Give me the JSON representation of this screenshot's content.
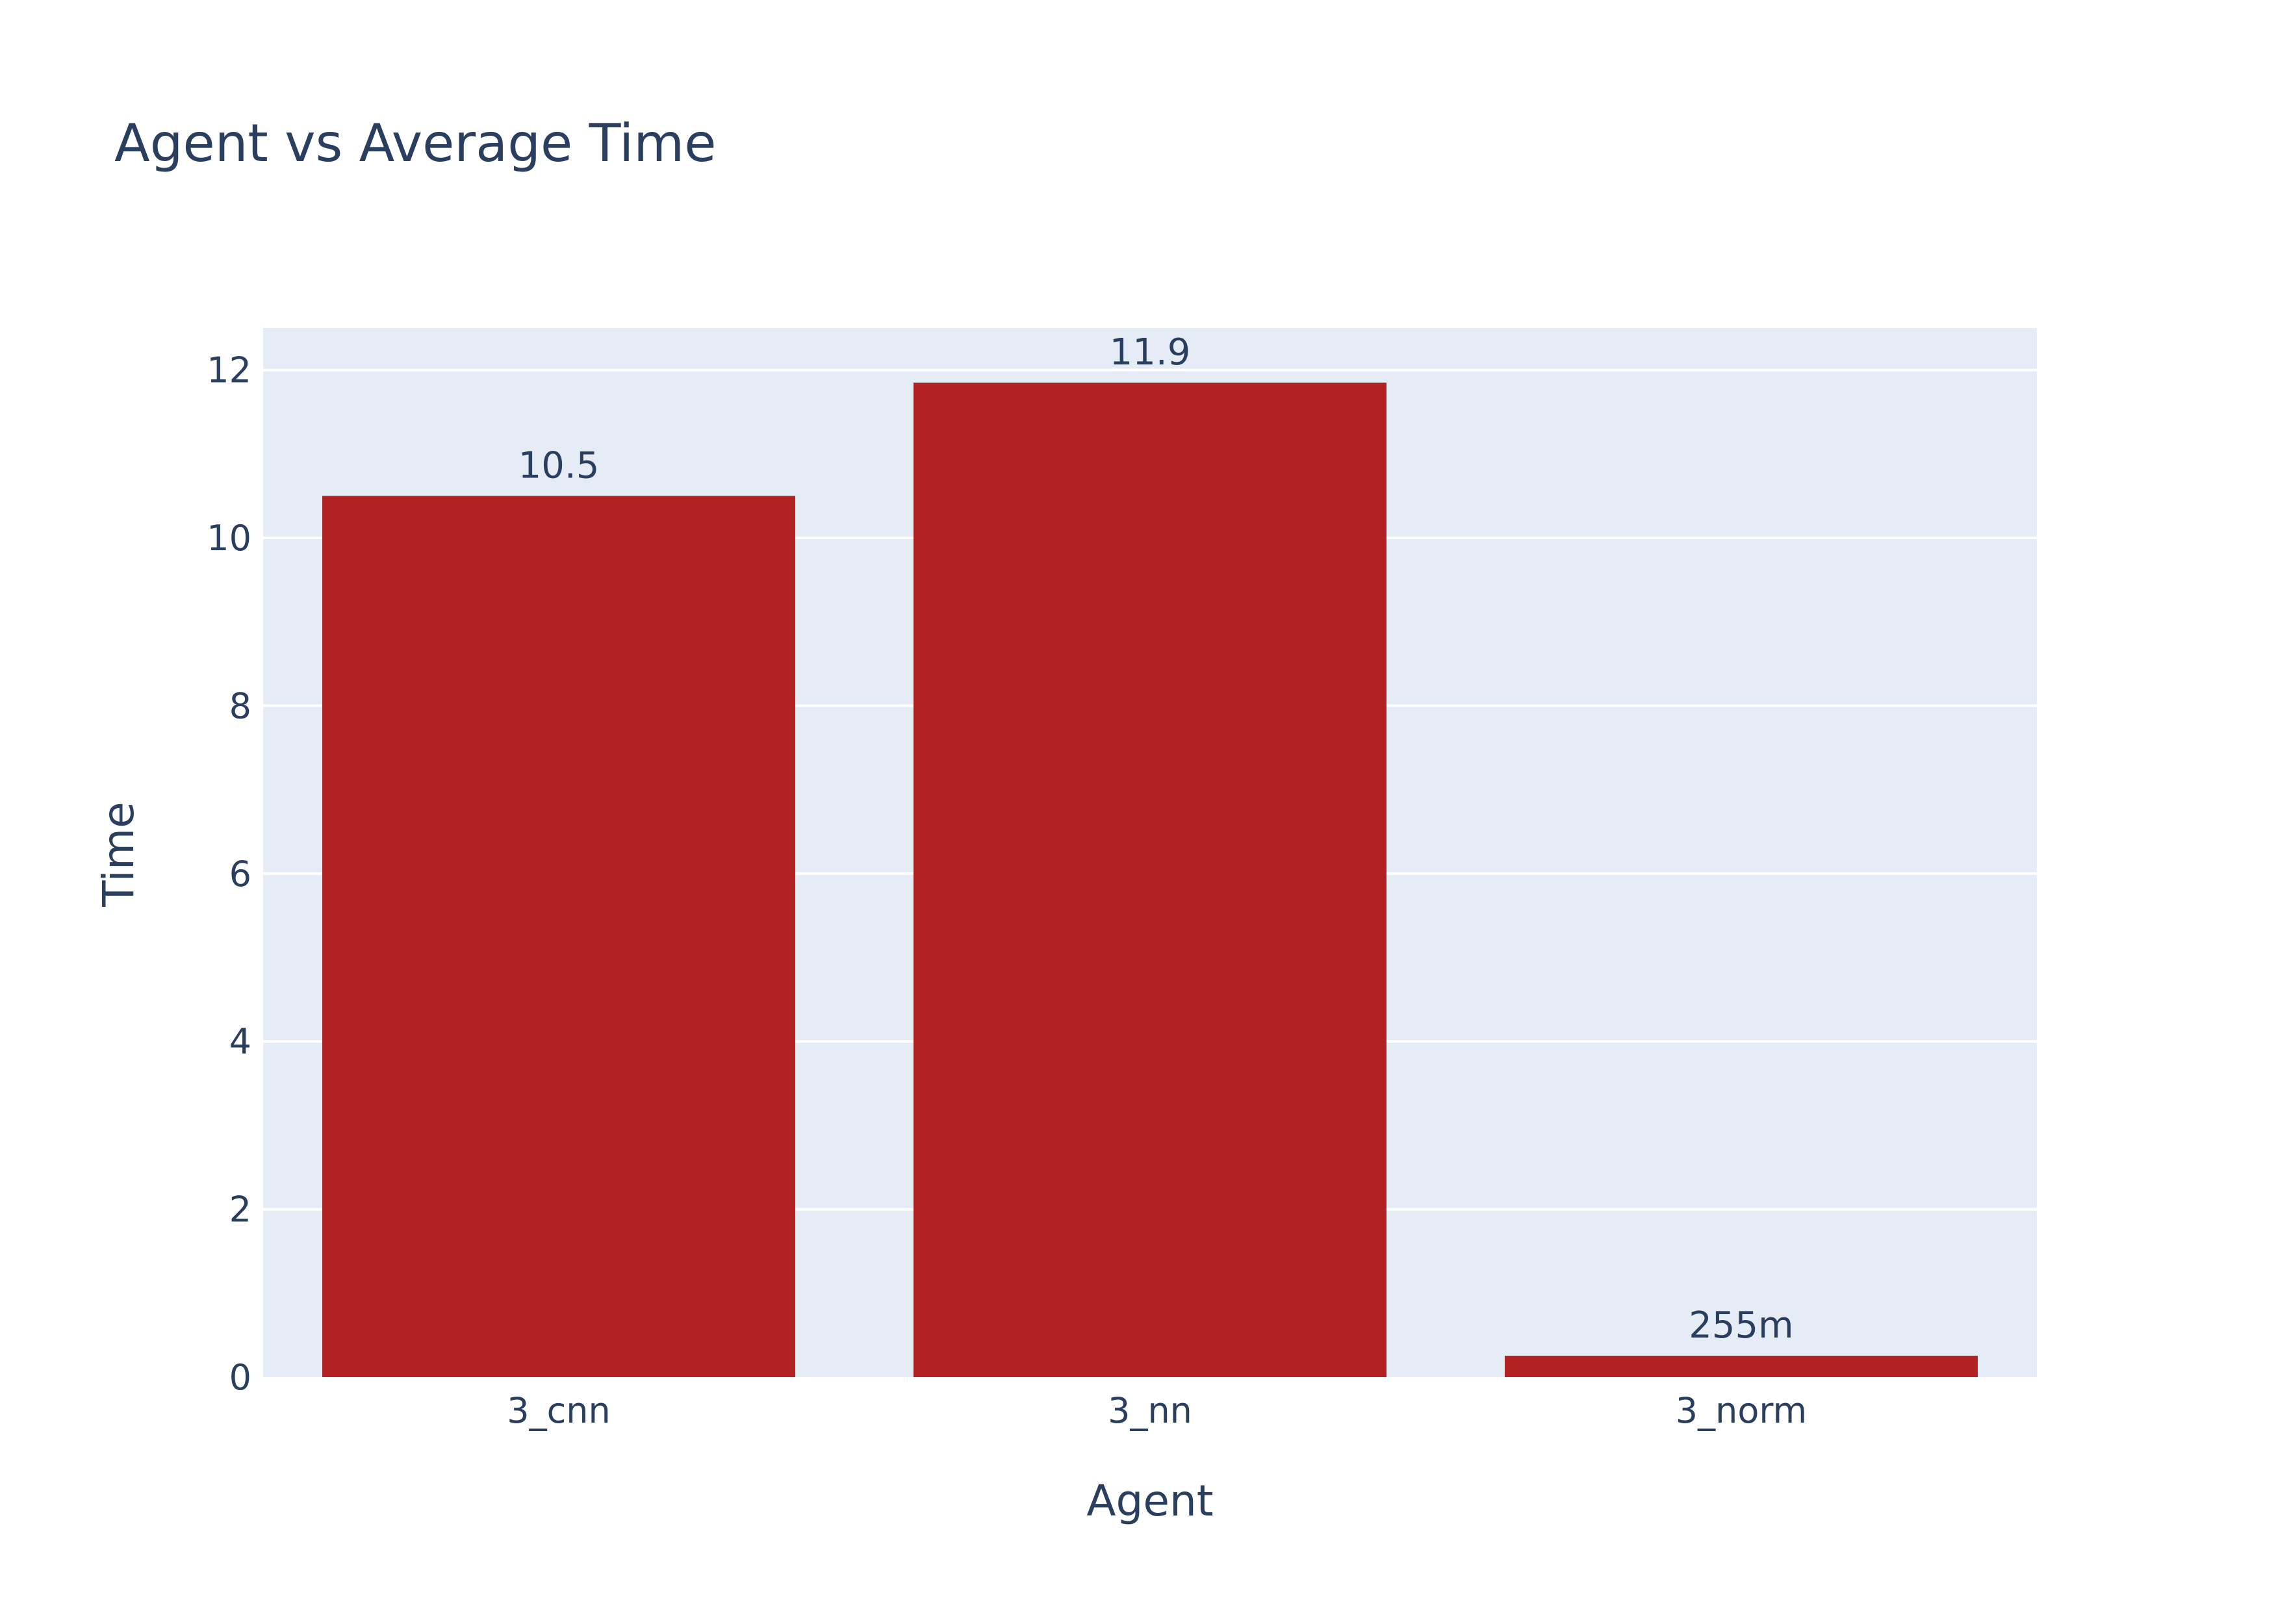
{
  "chart_data": {
    "type": "bar",
    "title": "Agent vs Average Time",
    "xlabel": "Agent",
    "ylabel": "Time",
    "categories": [
      "3_cnn",
      "3_nn",
      "3_norm"
    ],
    "values": [
      10.5,
      11.85,
      0.255
    ],
    "value_labels": [
      "10.5",
      "11.9",
      "255m"
    ],
    "ylim": [
      0,
      12.5
    ],
    "yticks": [
      0,
      2,
      4,
      6,
      8,
      10,
      12
    ],
    "grid": true,
    "legend": "none",
    "colors": {
      "bar": "#b22222",
      "plot_background": "#e5ecf6",
      "gridline": "#ffffff",
      "text": "#2a3f5f"
    }
  }
}
